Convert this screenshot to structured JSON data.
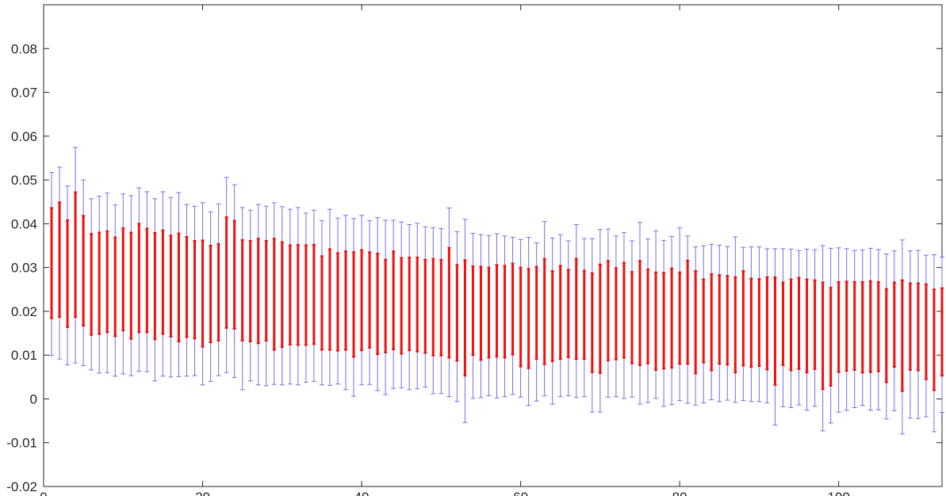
{
  "chart_data": {
    "type": "errorbar",
    "title": "",
    "xlabel": "",
    "ylabel": "",
    "xlim": [
      0,
      113
    ],
    "ylim": [
      -0.02,
      0.09
    ],
    "grid": false,
    "legend": "none",
    "xticks": [
      0,
      20,
      40,
      60,
      80,
      100
    ],
    "xtick_labels": [
      "0",
      "20",
      "40",
      "60",
      "80",
      "100"
    ],
    "yticks": [
      -0.02,
      -0.01,
      0,
      0.01,
      0.02,
      0.03,
      0.04,
      0.05,
      0.06,
      0.07,
      0.08
    ],
    "ytick_labels": [
      "-0.02",
      "-0.01",
      "0",
      "0.01",
      "0.02",
      "0.03",
      "0.04",
      "0.05",
      "0.06",
      "0.07",
      "0.08"
    ],
    "x": [
      1,
      2,
      3,
      4,
      5,
      6,
      7,
      8,
      9,
      10,
      11,
      12,
      13,
      14,
      15,
      16,
      17,
      18,
      19,
      20,
      21,
      22,
      23,
      24,
      25,
      26,
      27,
      28,
      29,
      30,
      31,
      32,
      33,
      34,
      35,
      36,
      37,
      38,
      39,
      40,
      41,
      42,
      43,
      44,
      45,
      46,
      47,
      48,
      49,
      50,
      51,
      52,
      53,
      54,
      55,
      56,
      57,
      58,
      59,
      60,
      61,
      62,
      63,
      64,
      65,
      66,
      67,
      68,
      69,
      70,
      71,
      72,
      73,
      74,
      75,
      76,
      77,
      78,
      79,
      80,
      81,
      82,
      83,
      84,
      85,
      86,
      87,
      88,
      89,
      90,
      91,
      92,
      93,
      94,
      95,
      96,
      97,
      98,
      99,
      100,
      101,
      102,
      103,
      104,
      105,
      106,
      107,
      108,
      109,
      110,
      111,
      112,
      113
    ],
    "series": [
      {
        "style": "outer",
        "color": "#7070ee",
        "lower": [
          0.0099,
          0.0091,
          0.0078,
          0.0082,
          0.0076,
          0.0066,
          0.0059,
          0.006,
          0.0052,
          0.0057,
          0.0053,
          0.0063,
          0.0062,
          0.0041,
          0.0052,
          0.005,
          0.0051,
          0.0052,
          0.0053,
          0.0032,
          0.004,
          0.0053,
          0.006,
          0.0049,
          0.0021,
          0.0041,
          0.0032,
          0.003,
          0.0033,
          0.0032,
          0.0034,
          0.0032,
          0.0038,
          0.004,
          0.0032,
          0.0031,
          0.0034,
          0.0021,
          0.0006,
          0.0032,
          0.0033,
          0.0019,
          0.001,
          0.0024,
          0.0025,
          0.0021,
          0.0023,
          0.0027,
          0.0012,
          0.0012,
          0.0005,
          -0.0006,
          -0.0054,
          0.0001,
          0.0003,
          0.0007,
          0.0002,
          0.0005,
          0.001,
          0.0004,
          -0.0015,
          -0.0005,
          0.0007,
          -0.0012,
          0.0005,
          0.0007,
          0.0003,
          0.0005,
          -0.003,
          -0.003,
          0.0004,
          0.0005,
          0.0001,
          0.0004,
          -0.0012,
          -0.0008,
          0.0001,
          -0.0017,
          -0.0013,
          -0.0004,
          -0.001,
          -0.0014,
          -0.0009,
          -0.0002,
          -0.0006,
          -0.0003,
          -0.0008,
          -0.0004,
          -0.0006,
          -0.0006,
          -0.0009,
          -0.006,
          -0.0018,
          -0.002,
          -0.0014,
          -0.0026,
          -0.0017,
          -0.0073,
          -0.0055,
          -0.003,
          -0.0026,
          -0.002,
          -0.0015,
          -0.0026,
          -0.0025,
          -0.0046,
          -0.0027,
          -0.008,
          -0.0044,
          -0.0045,
          -0.0041,
          -0.0075,
          -0.0031
        ],
        "upper": [
          0.0517,
          0.0529,
          0.0486,
          0.0574,
          0.05,
          0.0457,
          0.0463,
          0.047,
          0.0443,
          0.0468,
          0.0464,
          0.0482,
          0.0473,
          0.0457,
          0.0473,
          0.046,
          0.0471,
          0.0444,
          0.044,
          0.0448,
          0.0427,
          0.0445,
          0.0506,
          0.0489,
          0.0437,
          0.0431,
          0.0444,
          0.044,
          0.0448,
          0.0439,
          0.0433,
          0.0437,
          0.0424,
          0.0431,
          0.0407,
          0.0433,
          0.0413,
          0.0419,
          0.0412,
          0.0419,
          0.0407,
          0.0414,
          0.0408,
          0.0408,
          0.0404,
          0.0398,
          0.0401,
          0.0393,
          0.0391,
          0.0389,
          0.0436,
          0.0382,
          0.041,
          0.0378,
          0.0375,
          0.0373,
          0.0377,
          0.0372,
          0.0369,
          0.0364,
          0.0369,
          0.0356,
          0.0405,
          0.0367,
          0.0375,
          0.0361,
          0.0398,
          0.0366,
          0.0366,
          0.0387,
          0.0388,
          0.0372,
          0.038,
          0.0361,
          0.0403,
          0.0365,
          0.0384,
          0.0362,
          0.0371,
          0.0391,
          0.0372,
          0.0347,
          0.035,
          0.0353,
          0.0351,
          0.0348,
          0.037,
          0.0346,
          0.0347,
          0.0347,
          0.0343,
          0.0343,
          0.0343,
          0.0342,
          0.0339,
          0.0342,
          0.0341,
          0.035,
          0.0344,
          0.0345,
          0.0343,
          0.0339,
          0.034,
          0.0344,
          0.0341,
          0.0331,
          0.0338,
          0.0363,
          0.0338,
          0.0339,
          0.0328,
          0.0329,
          0.0324
        ]
      },
      {
        "style": "inner",
        "color": "#ee1111",
        "lower": [
          0.0184,
          0.0187,
          0.0164,
          0.0187,
          0.0167,
          0.0146,
          0.0148,
          0.0152,
          0.0143,
          0.0156,
          0.0137,
          0.0152,
          0.0152,
          0.0136,
          0.0148,
          0.0142,
          0.0131,
          0.0141,
          0.0138,
          0.0119,
          0.0129,
          0.0133,
          0.0162,
          0.016,
          0.0133,
          0.0131,
          0.0127,
          0.0133,
          0.0112,
          0.0118,
          0.0124,
          0.0123,
          0.0123,
          0.0125,
          0.0112,
          0.0112,
          0.011,
          0.0112,
          0.0096,
          0.0111,
          0.0117,
          0.0102,
          0.0106,
          0.0113,
          0.0103,
          0.0111,
          0.0108,
          0.0105,
          0.0099,
          0.0099,
          0.0094,
          0.0087,
          0.0053,
          0.01,
          0.0089,
          0.0094,
          0.0096,
          0.0094,
          0.0101,
          0.0074,
          0.007,
          0.0091,
          0.0079,
          0.0086,
          0.0091,
          0.0095,
          0.0091,
          0.0091,
          0.0061,
          0.0059,
          0.0088,
          0.009,
          0.0094,
          0.0081,
          0.0077,
          0.0081,
          0.0066,
          0.0069,
          0.0071,
          0.008,
          0.008,
          0.0058,
          0.0083,
          0.0065,
          0.008,
          0.0078,
          0.006,
          0.0076,
          0.0073,
          0.0075,
          0.0067,
          0.0032,
          0.0077,
          0.0065,
          0.0068,
          0.006,
          0.0068,
          0.0022,
          0.003,
          0.0061,
          0.0064,
          0.0066,
          0.006,
          0.0061,
          0.0063,
          0.0038,
          0.0073,
          0.0018,
          0.0066,
          0.0065,
          0.0045,
          0.002,
          0.0053
        ],
        "upper": [
          0.0436,
          0.0449,
          0.0408,
          0.0472,
          0.0418,
          0.0377,
          0.038,
          0.0383,
          0.0369,
          0.039,
          0.038,
          0.04,
          0.0389,
          0.0379,
          0.0385,
          0.0373,
          0.0378,
          0.037,
          0.0361,
          0.0362,
          0.035,
          0.0354,
          0.0415,
          0.0407,
          0.0363,
          0.0361,
          0.0366,
          0.0361,
          0.0366,
          0.0358,
          0.0351,
          0.0352,
          0.0351,
          0.0352,
          0.0326,
          0.0342,
          0.0333,
          0.0337,
          0.0335,
          0.034,
          0.0335,
          0.0332,
          0.0318,
          0.0337,
          0.0322,
          0.0323,
          0.0323,
          0.0318,
          0.032,
          0.0318,
          0.0345,
          0.0306,
          0.0317,
          0.0303,
          0.0302,
          0.03,
          0.0306,
          0.0304,
          0.0309,
          0.03,
          0.0297,
          0.0302,
          0.032,
          0.0292,
          0.0304,
          0.0295,
          0.032,
          0.0293,
          0.0287,
          0.0307,
          0.0315,
          0.0299,
          0.0311,
          0.029,
          0.0315,
          0.0296,
          0.0289,
          0.0288,
          0.0298,
          0.0289,
          0.0316,
          0.0292,
          0.0273,
          0.0285,
          0.0283,
          0.0281,
          0.0278,
          0.0292,
          0.0275,
          0.0274,
          0.0278,
          0.0278,
          0.0266,
          0.0273,
          0.0277,
          0.0273,
          0.0271,
          0.0266,
          0.0254,
          0.0267,
          0.0268,
          0.0267,
          0.0267,
          0.0269,
          0.0267,
          0.0251,
          0.0266,
          0.0271,
          0.0264,
          0.0264,
          0.0262,
          0.025,
          0.0253
        ]
      }
    ]
  }
}
